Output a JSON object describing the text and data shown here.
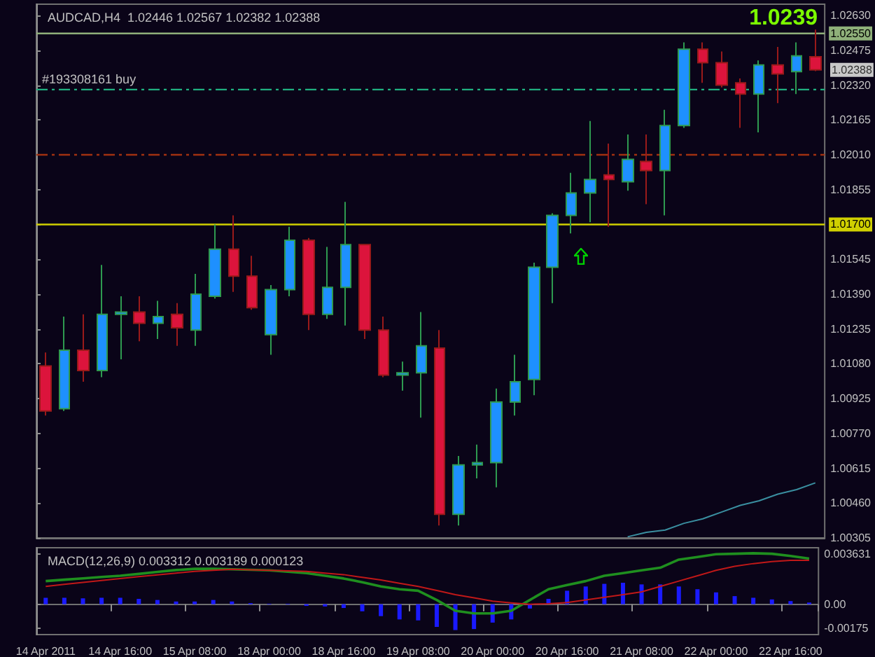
{
  "chart_data": [
    {
      "type": "candlestick",
      "title": "AUDCAD,H4  1.02446 1.02567 1.02382 1.02388",
      "categories": [
        null,
        null,
        null,
        null,
        null,
        null,
        null,
        null,
        null,
        null,
        null,
        null,
        null,
        null,
        null,
        null,
        null,
        null,
        null,
        null,
        null,
        null,
        null,
        null,
        null,
        null,
        null,
        null,
        null,
        null,
        null,
        null,
        null,
        null,
        null,
        null,
        null,
        null,
        null,
        null,
        null,
        null
      ],
      "ohlc": [
        [
          1.0107,
          1.0113,
          1.0085,
          1.0087
        ],
        [
          1.0088,
          1.0129,
          1.0087,
          1.0114
        ],
        [
          1.0114,
          1.013,
          1.01,
          1.0105
        ],
        [
          1.0105,
          1.0152,
          1.0102,
          1.013
        ],
        [
          1.013,
          1.0138,
          1.011,
          1.0131
        ],
        [
          1.0131,
          1.0138,
          1.0118,
          1.0126
        ],
        [
          1.0126,
          1.0136,
          1.0119,
          1.0129
        ],
        [
          1.013,
          1.0135,
          1.0116,
          1.0124
        ],
        [
          1.0123,
          1.0148,
          1.0116,
          1.0139
        ],
        [
          1.0138,
          1.017,
          1.0137,
          1.0159
        ],
        [
          1.0159,
          1.0174,
          1.014,
          1.0147
        ],
        [
          1.0147,
          1.0156,
          1.0132,
          1.0133
        ],
        [
          1.0121,
          1.0143,
          1.0112,
          1.0141
        ],
        [
          1.0141,
          1.0169,
          1.0138,
          1.0163
        ],
        [
          1.0163,
          1.0164,
          1.0123,
          1.013
        ],
        [
          1.013,
          1.016,
          1.0128,
          1.0142
        ],
        [
          1.0142,
          1.018,
          1.0125,
          1.0161
        ],
        [
          1.0161,
          1.0161,
          1.0119,
          1.0123
        ],
        [
          1.0123,
          1.0129,
          1.0102,
          1.0103
        ],
        [
          1.0103,
          1.0109,
          1.0096,
          1.0104
        ],
        [
          1.0104,
          1.0131,
          1.0084,
          1.0116
        ],
        [
          1.0115,
          1.0123,
          1.0036,
          1.0041
        ],
        [
          1.0041,
          1.0067,
          1.0036,
          1.0063
        ],
        [
          1.0063,
          1.0072,
          1.0057,
          1.0064
        ],
        [
          1.0064,
          1.0097,
          1.0053,
          1.0091
        ],
        [
          1.0091,
          1.0112,
          1.0085,
          1.01
        ],
        [
          1.0101,
          1.0153,
          1.0094,
          1.0151
        ],
        [
          1.0151,
          1.0175,
          1.0135,
          1.0174
        ],
        [
          1.0174,
          1.0193,
          1.0166,
          1.0184
        ],
        [
          1.0184,
          1.0216,
          1.0171,
          1.019
        ],
        [
          1.0192,
          1.0206,
          1.0169,
          1.019
        ],
        [
          1.0189,
          1.021,
          1.0185,
          1.0199
        ],
        [
          1.0198,
          1.021,
          1.0179,
          1.0194
        ],
        [
          1.0194,
          1.0221,
          1.0174,
          1.0214
        ],
        [
          1.0214,
          1.0251,
          1.0213,
          1.0248
        ],
        [
          1.0248,
          1.0251,
          1.0233,
          1.0242
        ],
        [
          1.0242,
          1.0247,
          1.0231,
          1.0232
        ],
        [
          1.0233,
          1.0235,
          1.0213,
          1.0228
        ],
        [
          1.0228,
          1.0243,
          1.0211,
          1.0241
        ],
        [
          1.0241,
          1.0249,
          1.0224,
          1.0237
        ],
        [
          1.0238,
          1.0251,
          1.0228,
          1.0245
        ],
        [
          1.02446,
          1.02567,
          1.02382,
          1.02388
        ]
      ],
      "series": [
        {
          "type": "line",
          "color": "#3a8fa0",
          "values": [
            null,
            null,
            null,
            null,
            null,
            null,
            null,
            null,
            null,
            null,
            null,
            null,
            null,
            null,
            null,
            null,
            null,
            null,
            null,
            null,
            null,
            null,
            null,
            null,
            null,
            null,
            null,
            null,
            null,
            null,
            null,
            1.0031,
            1.0033,
            1.0034,
            1.0037,
            1.0039,
            1.0042,
            1.0045,
            1.0047,
            1.005,
            1.0052,
            1.0055
          ]
        }
      ],
      "ylim": [
        1.00305,
        1.0268
      ],
      "yticks": [
        1.00305,
        {
          "value": 1.0046,
          "label": "1.00460"
        },
        1.00615,
        {
          "value": 1.0077,
          "label": "1.00770"
        },
        1.00925,
        {
          "value": 1.0108,
          "label": "1.01080"
        },
        1.01235,
        {
          "value": 1.0139,
          "label": "1.01390"
        },
        1.01545,
        {
          "value": 1.017,
          "label": null
        },
        1.01855,
        {
          "value": 1.0201,
          "label": "1.02010"
        },
        1.02165,
        {
          "value": 1.0232,
          "label": "1.02320"
        },
        1.02475,
        {
          "value": 1.0263,
          "label": "1.02630"
        }
      ],
      "ref_lines": [
        {
          "axis": "y",
          "value": 1.0255,
          "label": "1.02550",
          "color": "#8fb07a"
        },
        {
          "axis": "y",
          "value": 1.023,
          "label": "#193308161 buy",
          "color": "#20b080",
          "line_style": "dashed"
        },
        {
          "axis": "y",
          "value": 1.0201,
          "color": "#a03010",
          "line_style": "dashed"
        },
        {
          "axis": "y",
          "value": 1.017,
          "label": "1.01700",
          "color": "#d0d000"
        }
      ],
      "annotations": [
        "1.0239",
        "1.02388"
      ],
      "marker": "none",
      "tick_labels": "y"
    },
    {
      "type": "bar",
      "title": "MACD(12,26,9) 0.003312 0.003189 0.000123",
      "categories": [
        "14 Apr 2011",
        null,
        null,
        null,
        "14 Apr 16:00",
        null,
        null,
        null,
        "15 Apr 08:00",
        null,
        null,
        null,
        "18 Apr 00:00",
        null,
        null,
        null,
        "18 Apr 16:00",
        null,
        null,
        null,
        "19 Apr 08:00",
        null,
        null,
        null,
        "20 Apr 00:00",
        null,
        null,
        null,
        "20 Apr 16:00",
        null,
        null,
        null,
        "21 Apr 08:00",
        null,
        null,
        null,
        "22 Apr 00:00",
        null,
        null,
        null,
        "22 Apr 16:00",
        null
      ],
      "series": [
        {
          "type": "bar",
          "color": "#1a1aff",
          "values": [
            0.00047,
            0.00047,
            0.00043,
            0.00047,
            0.00047,
            0.00039,
            0.00031,
            0.0002,
            0.0002,
            0.00031,
            0.0002,
            8e-05,
            4e-05,
            4e-05,
            -0.00012,
            -0.00016,
            -0.00027,
            -0.00051,
            -0.00086,
            -0.0011,
            -0.00117,
            -0.00164,
            -0.00187,
            -0.0018,
            -0.00133,
            -0.0011,
            -0.00031,
            0.00039,
            0.00098,
            0.00129,
            0.00148,
            0.00156,
            0.00144,
            0.00144,
            0.00129,
            0.00109,
            0.00086,
            0.00059,
            0.00047,
            0.00035,
            0.00023,
            0.000123
          ]
        },
        {
          "type": "line",
          "color": "#1f8f1f",
          "values": [
            0.00168,
            0.00178,
            0.00188,
            0.00198,
            0.00207,
            0.0022,
            0.00235,
            0.00248,
            0.00257,
            0.00257,
            0.00254,
            0.0025,
            0.00246,
            0.00236,
            0.00226,
            0.00207,
            0.00187,
            0.0016,
            0.00129,
            0.00109,
            0.00098,
            0.00031,
            -0.00047,
            -0.00066,
            -0.00066,
            -0.00047,
            0.00031,
            0.00109,
            0.0014,
            0.00168,
            0.00207,
            0.00226,
            0.00246,
            0.00265,
            0.00324,
            0.00343,
            0.00363,
            0.00366,
            0.0037,
            0.00366,
            0.0035,
            0.003312
          ]
        },
        {
          "type": "line",
          "color": "#c01818",
          "values": [
            0.00129,
            0.00144,
            0.00158,
            0.00173,
            0.00187,
            0.002,
            0.00213,
            0.00226,
            0.00238,
            0.00246,
            0.00254,
            0.0025,
            0.00246,
            0.00242,
            0.00238,
            0.00226,
            0.00215,
            0.00195,
            0.00176,
            0.00152,
            0.00129,
            0.001,
            0.0007,
            0.00047,
            0.00023,
            0.0001,
            0.0,
            4e-05,
            0.00012,
            0.00031,
            0.0005,
            0.0007,
            0.0009,
            0.00129,
            0.00168,
            0.00207,
            0.00246,
            0.00275,
            0.00295,
            0.0031,
            0.00318,
            0.003189
          ]
        }
      ],
      "ylim": [
        -0.0022,
        0.0041
      ],
      "yticks": [
        -0.00175,
        {
          "value": 0,
          "label": "0.00"
        },
        0.003631
      ],
      "marker": "none"
    }
  ]
}
